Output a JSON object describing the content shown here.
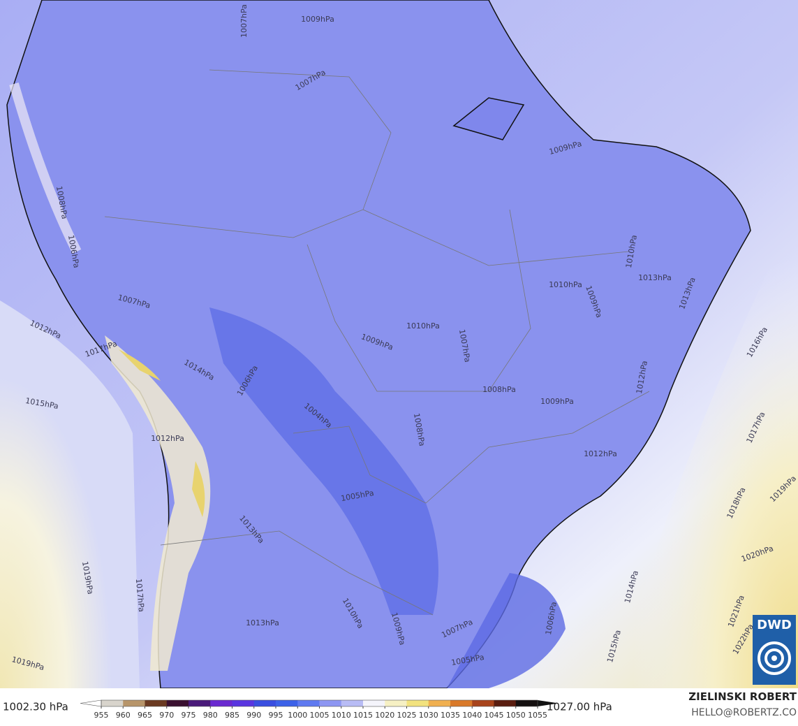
{
  "map": {
    "isobar_labels": [
      "1009hPa",
      "1007hPa",
      "1007hPa",
      "1009hPa",
      "1010hPa",
      "1010hPa",
      "1009hPa",
      "1013hPa",
      "1013hPa",
      "1010hPa",
      "1009hPa",
      "1007hPa",
      "1008hPa",
      "1009hPa",
      "1012hPa",
      "1012hPa",
      "1008hPa",
      "1004hPa",
      "1006hPa",
      "1005hPa",
      "1007hPa",
      "1012hPa",
      "1017hPa",
      "1015hPa",
      "1014hPa",
      "1016hPa",
      "1017hPa",
      "1018hPa",
      "1019hPa",
      "1020hPa",
      "1021hPa",
      "1022hPa",
      "1014hPa",
      "1015hPa",
      "1006hPa",
      "1007hPa",
      "1005hPa",
      "1009hPa",
      "1010hPa",
      "1013hPa",
      "1019hPa",
      "1019hPa",
      "1017hPa",
      "1013hPa",
      "1012hPa",
      "1008hPa",
      "1006hPa"
    ],
    "min_label": "1002.30 hPa",
    "max_label": "1027.00 hPa",
    "colorbar": {
      "ticks": [
        955,
        960,
        965,
        970,
        975,
        980,
        985,
        990,
        995,
        1000,
        1005,
        1010,
        1015,
        1020,
        1025,
        1030,
        1035,
        1040,
        1045,
        1050,
        1055
      ],
      "colors": [
        "#d8d4cc",
        "#b7956a",
        "#6b3a22",
        "#3a1030",
        "#4a1a7a",
        "#6a2ad0",
        "#5a36e0",
        "#3a4fe0",
        "#3d62e8",
        "#5f7af0",
        "#8d96f2",
        "#b8bcf5",
        "#f4f4fb",
        "#f6f0c4",
        "#f2e27e",
        "#f0b050",
        "#d97a2a",
        "#a8441c",
        "#5a1e10",
        "#151010"
      ]
    },
    "credit_name": "ZIELINSKI ROBERT",
    "credit_mail": "HELLO@ROBERTZ.CO",
    "logo": "DWD"
  }
}
